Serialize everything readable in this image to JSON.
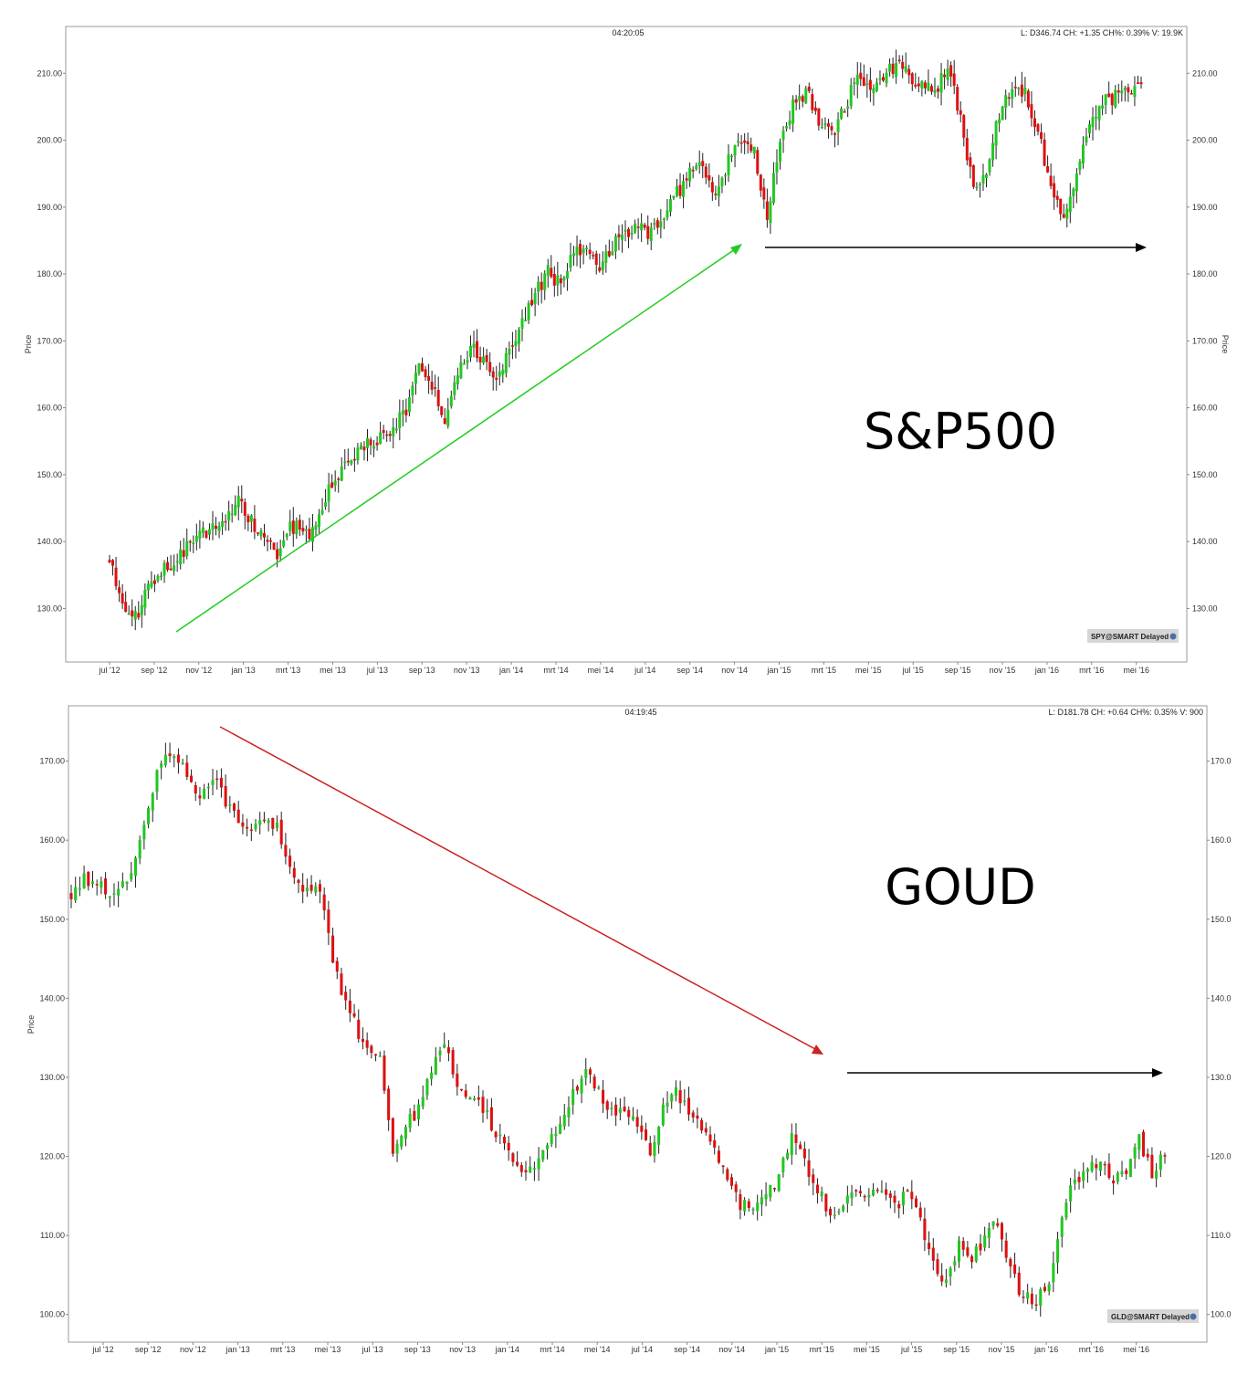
{
  "chart_data": [
    {
      "type": "candlestick",
      "clock": "04:20:05",
      "quote_info": "L: D346.74 CH: +1.35 CH%: 0.39% V: 19.9K",
      "ylabel": "Price",
      "ylabel_right": "Price",
      "ylim": [
        122,
        217
      ],
      "yticks": [
        130,
        140,
        150,
        160,
        170,
        180,
        190,
        200,
        210
      ],
      "ytick_labels": [
        "130.00",
        "140.00",
        "150.00",
        "160.00",
        "170.00",
        "180.00",
        "190.00",
        "200.00",
        "210.00"
      ],
      "right_ytick_labels": [
        "130.00",
        "140.00",
        "150.00",
        "160.00",
        "170.00",
        "180.00",
        "190.00",
        "200.00",
        "210.00"
      ],
      "xlabels": [
        "jul '12",
        "sep '12",
        "nov '12",
        "jan '13",
        "mrt '13",
        "mei '13",
        "jul '13",
        "sep '13",
        "nov '13",
        "jan '14",
        "mrt '14",
        "mei '14",
        "jul '14",
        "sep '14",
        "nov '14",
        "jan '15",
        "mrt '15",
        "mei '15",
        "jul '15",
        "sep '15",
        "nov '15",
        "jan '16",
        "mrt '16",
        "mei '16"
      ],
      "x_range": [
        0,
        48.6
      ],
      "closes": [
        {
          "t": 0,
          "c": 137.5
        },
        {
          "t": 1,
          "c": 131
        },
        {
          "t": 2,
          "c": 128.5
        },
        {
          "t": 3,
          "c": 133.5
        },
        {
          "t": 4,
          "c": 136
        },
        {
          "t": 5,
          "c": 137
        },
        {
          "t": 6,
          "c": 139
        },
        {
          "t": 7,
          "c": 141.5
        },
        {
          "t": 8,
          "c": 141.7
        },
        {
          "t": 9,
          "c": 143.5
        },
        {
          "t": 10,
          "c": 146
        },
        {
          "t": 11,
          "c": 143
        },
        {
          "t": 12,
          "c": 141
        },
        {
          "t": 13,
          "c": 137
        },
        {
          "t": 14,
          "c": 142.5
        },
        {
          "t": 15,
          "c": 141.6
        },
        {
          "t": 16,
          "c": 141.4
        },
        {
          "t": 17,
          "c": 147.5
        },
        {
          "t": 18,
          "c": 150.5
        },
        {
          "t": 19,
          "c": 152.5
        },
        {
          "t": 20,
          "c": 155
        },
        {
          "t": 21,
          "c": 155.5
        },
        {
          "t": 22,
          "c": 156.5
        },
        {
          "t": 23,
          "c": 160
        },
        {
          "t": 24,
          "c": 166
        },
        {
          "t": 25,
          "c": 163
        },
        {
          "t": 26,
          "c": 158
        },
        {
          "t": 27,
          "c": 166
        },
        {
          "t": 28,
          "c": 169
        },
        {
          "t": 29,
          "c": 167
        },
        {
          "t": 30,
          "c": 164
        },
        {
          "t": 31,
          "c": 169.5
        },
        {
          "t": 32,
          "c": 172.5
        },
        {
          "t": 33,
          "c": 177
        },
        {
          "t": 34,
          "c": 180.5
        },
        {
          "t": 35,
          "c": 178
        },
        {
          "t": 36,
          "c": 183
        },
        {
          "t": 37,
          "c": 184
        },
        {
          "t": 38,
          "c": 180
        },
        {
          "t": 39,
          "c": 184.5
        },
        {
          "t": 40,
          "c": 186
        },
        {
          "t": 41,
          "c": 187
        },
        {
          "t": 42,
          "c": 186
        },
        {
          "t": 43,
          "c": 188
        },
        {
          "t": 44,
          "c": 192
        },
        {
          "t": 45,
          "c": 195
        },
        {
          "t": 46,
          "c": 196
        },
        {
          "t": 47,
          "c": 192
        },
        {
          "t": 48,
          "c": 197
        },
        {
          "t": 49,
          "c": 200.5
        },
        {
          "t": 50,
          "c": 198
        },
        {
          "t": 51,
          "c": 188
        },
        {
          "t": 52,
          "c": 200
        },
        {
          "t": 53,
          "c": 205
        },
        {
          "t": 54,
          "c": 207.5
        },
        {
          "t": 55,
          "c": 202.5
        },
        {
          "t": 56,
          "c": 201
        },
        {
          "t": 57,
          "c": 204.5
        },
        {
          "t": 58,
          "c": 210
        },
        {
          "t": 59,
          "c": 207.5
        },
        {
          "t": 60,
          "c": 209.5
        },
        {
          "t": 61,
          "c": 211
        },
        {
          "t": 62,
          "c": 210
        },
        {
          "t": 63,
          "c": 208
        },
        {
          "t": 64,
          "c": 207
        },
        {
          "t": 65,
          "c": 211
        },
        {
          "t": 66,
          "c": 203
        },
        {
          "t": 67,
          "c": 193
        },
        {
          "t": 68,
          "c": 196
        },
        {
          "t": 69,
          "c": 204
        },
        {
          "t": 70,
          "c": 208
        },
        {
          "t": 71,
          "c": 207
        },
        {
          "t": 72,
          "c": 201.5
        },
        {
          "t": 73,
          "c": 192
        },
        {
          "t": 74,
          "c": 188
        },
        {
          "t": 75,
          "c": 195
        },
        {
          "t": 76,
          "c": 203
        },
        {
          "t": 77,
          "c": 206
        },
        {
          "t": 78,
          "c": 206.5
        },
        {
          "t": 79,
          "c": 207.5
        },
        {
          "t": 80,
          "c": 209
        }
      ]
    },
    {
      "type": "candlestick",
      "clock": "04:19:45",
      "quote_info": "L: D181.78 CH: +0.64 CH%: 0.35% V: 900",
      "ylabel": "Price",
      "ylim": [
        96.5,
        177
      ],
      "yticks": [
        100,
        110,
        120,
        130,
        140,
        150,
        160,
        170
      ],
      "ytick_labels": [
        "100.00",
        "110.00",
        "120.00",
        "130.00",
        "140.00",
        "150.00",
        "160.00",
        "170.00"
      ],
      "right_ytick_labels": [
        "100.0",
        "110.0",
        "120.0",
        "130.0",
        "140.0",
        "150.0",
        "160.0",
        "170.0"
      ],
      "xlabels": [
        "jul '12",
        "sep '12",
        "nov '12",
        "jan '13",
        "mrt '13",
        "mei '13",
        "jul '13",
        "sep '13",
        "nov '13",
        "jan '14",
        "mrt '14",
        "mei '14",
        "jul '14",
        "sep '14",
        "nov '14",
        "jan '15",
        "mrt '15",
        "mei '15",
        "jul '15",
        "sep '15",
        "nov '15",
        "jan '16",
        "mrt '16",
        "mei '16"
      ],
      "x_range": [
        0,
        48.6
      ],
      "closes": [
        {
          "t": 0,
          "c": 153
        },
        {
          "t": 1,
          "c": 155
        },
        {
          "t": 2,
          "c": 154.5
        },
        {
          "t": 3,
          "c": 153
        },
        {
          "t": 4,
          "c": 154
        },
        {
          "t": 5,
          "c": 157
        },
        {
          "t": 6,
          "c": 164
        },
        {
          "t": 7,
          "c": 170
        },
        {
          "t": 8,
          "c": 171
        },
        {
          "t": 9,
          "c": 168
        },
        {
          "t": 10,
          "c": 166
        },
        {
          "t": 11,
          "c": 168
        },
        {
          "t": 12,
          "c": 165
        },
        {
          "t": 13,
          "c": 162
        },
        {
          "t": 14,
          "c": 161
        },
        {
          "t": 15,
          "c": 163
        },
        {
          "t": 16,
          "c": 162
        },
        {
          "t": 17,
          "c": 157
        },
        {
          "t": 18,
          "c": 153
        },
        {
          "t": 19,
          "c": 155
        },
        {
          "t": 20,
          "c": 148
        },
        {
          "t": 21,
          "c": 140
        },
        {
          "t": 22,
          "c": 137
        },
        {
          "t": 23,
          "c": 133
        },
        {
          "t": 24,
          "c": 133
        },
        {
          "t": 25,
          "c": 121
        },
        {
          "t": 26,
          "c": 124
        },
        {
          "t": 27,
          "c": 126
        },
        {
          "t": 28,
          "c": 131
        },
        {
          "t": 29,
          "c": 134
        },
        {
          "t": 30,
          "c": 129
        },
        {
          "t": 31,
          "c": 127
        },
        {
          "t": 32,
          "c": 126
        },
        {
          "t": 33,
          "c": 123
        },
        {
          "t": 34,
          "c": 120
        },
        {
          "t": 35,
          "c": 118
        },
        {
          "t": 36,
          "c": 119
        },
        {
          "t": 37,
          "c": 121
        },
        {
          "t": 38,
          "c": 124
        },
        {
          "t": 39,
          "c": 128
        },
        {
          "t": 40,
          "c": 131
        },
        {
          "t": 41,
          "c": 128
        },
        {
          "t": 42,
          "c": 126
        },
        {
          "t": 43,
          "c": 125
        },
        {
          "t": 44,
          "c": 124
        },
        {
          "t": 45,
          "c": 121
        },
        {
          "t": 46,
          "c": 126
        },
        {
          "t": 47,
          "c": 128
        },
        {
          "t": 48,
          "c": 126
        },
        {
          "t": 49,
          "c": 124
        },
        {
          "t": 50,
          "c": 121
        },
        {
          "t": 51,
          "c": 117
        },
        {
          "t": 52,
          "c": 114
        },
        {
          "t": 53,
          "c": 113
        },
        {
          "t": 54,
          "c": 115
        },
        {
          "t": 55,
          "c": 117
        },
        {
          "t": 56,
          "c": 123
        },
        {
          "t": 57,
          "c": 119
        },
        {
          "t": 58,
          "c": 116
        },
        {
          "t": 59,
          "c": 112
        },
        {
          "t": 60,
          "c": 114
        },
        {
          "t": 61,
          "c": 116
        },
        {
          "t": 62,
          "c": 115
        },
        {
          "t": 63,
          "c": 116
        },
        {
          "t": 64,
          "c": 114
        },
        {
          "t": 65,
          "c": 115
        },
        {
          "t": 66,
          "c": 112
        },
        {
          "t": 67,
          "c": 106
        },
        {
          "t": 68,
          "c": 104
        },
        {
          "t": 69,
          "c": 109
        },
        {
          "t": 70,
          "c": 107
        },
        {
          "t": 71,
          "c": 110
        },
        {
          "t": 72,
          "c": 112
        },
        {
          "t": 73,
          "c": 106
        },
        {
          "t": 74,
          "c": 102
        },
        {
          "t": 75,
          "c": 102
        },
        {
          "t": 76,
          "c": 104
        },
        {
          "t": 77,
          "c": 113
        },
        {
          "t": 78,
          "c": 117
        },
        {
          "t": 79,
          "c": 118
        },
        {
          "t": 80,
          "c": 120
        },
        {
          "t": 81,
          "c": 117
        },
        {
          "t": 82,
          "c": 118
        },
        {
          "t": 83,
          "c": 122
        },
        {
          "t": 84,
          "c": 118
        },
        {
          "t": 85,
          "c": 121
        }
      ]
    }
  ],
  "panels": [
    {
      "big_label": "S&P500",
      "badge": "SPY@SMART Delayed",
      "trend_color": "#22cc22",
      "flat_color": "#000000"
    },
    {
      "big_label": "GOUD",
      "badge": "GLD@SMART Delayed",
      "trend_color": "#cc2222",
      "flat_color": "#000000"
    }
  ],
  "colors": {
    "up": "#22c722",
    "down": "#dd1111",
    "wick": "#222222",
    "frame": "#9a9a9a"
  }
}
